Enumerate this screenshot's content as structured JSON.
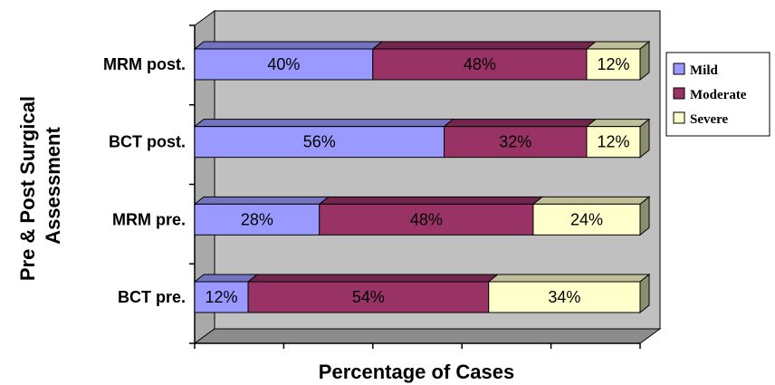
{
  "chart_data": {
    "type": "bar",
    "orientation": "horizontal",
    "stacked": true,
    "categories": [
      "BCT pre.",
      "MRM pre.",
      "BCT post.",
      "MRM post."
    ],
    "series": [
      {
        "name": "Mild",
        "values": [
          12,
          28,
          56,
          40
        ],
        "labels": [
          "12%",
          "28%",
          "56%",
          "40%"
        ],
        "color": "#9999ff"
      },
      {
        "name": "Moderate",
        "values": [
          54,
          48,
          32,
          48
        ],
        "labels": [
          "54%",
          "48%",
          "32%",
          "48%"
        ],
        "color": "#993366"
      },
      {
        "name": "Severe",
        "values": [
          34,
          24,
          12,
          12
        ],
        "labels": [
          "34%",
          "24%",
          "12%",
          "12%"
        ],
        "color": "#ffffcc"
      }
    ],
    "xlabel": "Percentage of Cases",
    "ylabel": "Pre & Post Surgical Assessment",
    "xlim": [
      0,
      100
    ],
    "legend_position": "right",
    "grid": false,
    "wall_color": "#c0c0c0"
  }
}
